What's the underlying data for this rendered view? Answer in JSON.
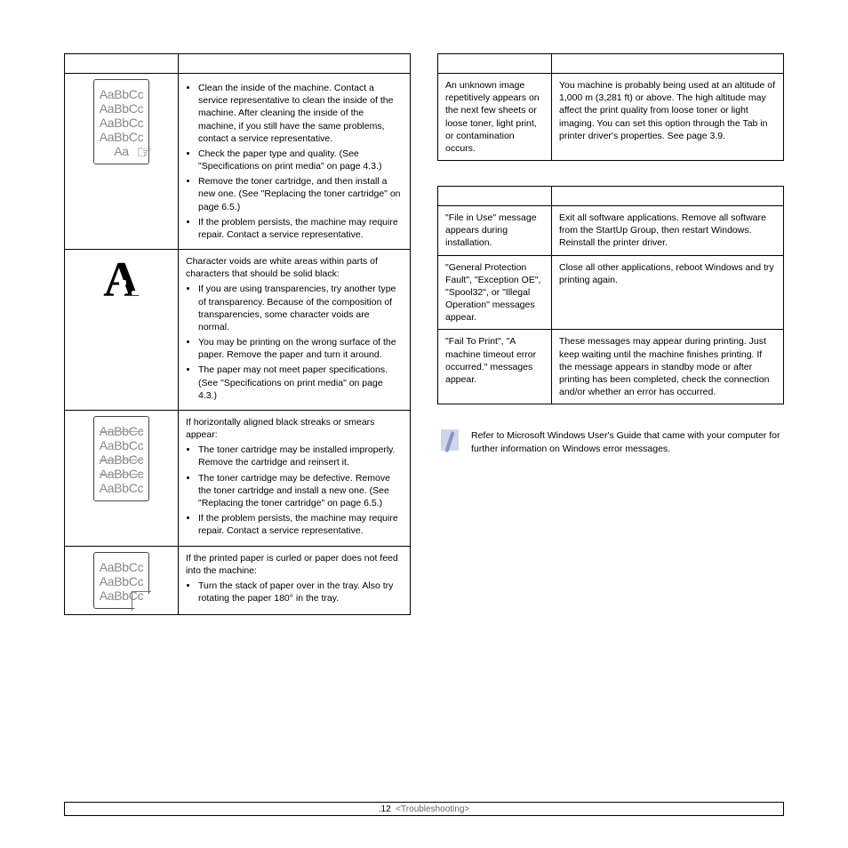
{
  "left_table": {
    "rows": [
      {
        "sample_type": "dropout_with_hand",
        "sample_lines": [
          "AaBbCc",
          "AaBbCc",
          "AaBbCc",
          "AaBbCc",
          "Aa"
        ],
        "intro": "",
        "bullets": [
          "Clean the inside of the machine. Contact a service representative to clean the inside of the machine. After cleaning the inside of the machine, if you still have the same problems, contact a service representative.",
          "Check the paper type and quality. (See \"Specifications on print media\" on page 4.3.)",
          "Remove the toner cartridge, and then install a new one. (See \"Replacing the toner cartridge\" on page 6.5.)",
          "If the problem persists, the machine may require repair. Contact a service representative."
        ]
      },
      {
        "sample_type": "big_a_void",
        "intro": "Character voids are white areas within parts of characters that should be solid black:",
        "bullets": [
          "If you are using transparencies, try another type of transparency. Because of the composition of transparencies, some character voids are normal.",
          "You may be printing on the wrong surface of the paper. Remove the paper and turn it around.",
          "The paper may not meet paper specifications. (See \"Specifications on print media\" on page 4.3.)"
        ]
      },
      {
        "sample_type": "strike_lines",
        "sample_lines": [
          "AaBbCc",
          "AaBbCc",
          "AaBbCc",
          "AaBbCc",
          "AaBbCc"
        ],
        "intro": "If horizontally aligned black streaks or smears appear:",
        "bullets": [
          "The toner cartridge may be installed improperly. Remove the cartridge and reinsert it.",
          "The toner cartridge may be defective. Remove the toner cartridge and install a new one. (See \"Replacing the toner cartridge\" on page 6.5.)",
          "If the problem persists, the machine may require repair. Contact a service representative."
        ]
      },
      {
        "sample_type": "curl",
        "sample_lines": [
          "AaBbCc",
          "AaBbCc",
          "AaBbCc"
        ],
        "intro": "If the printed paper is curled or paper does not feed into the machine:",
        "bullets": [
          "Turn the stack of paper over in the tray. Also try rotating the paper 180° in the tray."
        ]
      }
    ]
  },
  "right_table_a": {
    "rows": [
      {
        "condition": "An unknown image repetitively appears on the next few sheets or loose toner, light print, or contamination occurs.",
        "solution_pre": "You machine is probably being used at an altitude of 1,000 m (3,281 ft) or above. The high altitude may affect the print quality from loose toner or light imaging. You can set this option through the ",
        "solution_mid_gap": "           ",
        "solution_post": " Tab in printer driver's properties. See page 3.9."
      }
    ]
  },
  "right_table_b": {
    "rows": [
      {
        "condition": "\"File in Use\" message appears during installation.",
        "solution": "Exit all software applications. Remove all software from the StartUp Group, then restart Windows. Reinstall the printer driver."
      },
      {
        "condition": "\"General Protection Fault\", \"Exception OE\", \"Spool32\", or \"Illegal Operation\" messages appear.",
        "solution": "Close all other applications, reboot Windows and try printing again."
      },
      {
        "condition": "\"Fail To Print\", \"A machine timeout error occurred.\" messages appear.",
        "solution": "These messages may appear during printing. Just keep waiting until the machine finishes printing. If the message appears in standby mode or after printing has been completed, check the connection and/or whether an error has occurred."
      }
    ]
  },
  "note": "Refer to Microsoft Windows User's Guide that came with your computer for further information on Windows error messages.",
  "footer": {
    "page": ".12",
    "section": "<Troubleshooting>"
  }
}
